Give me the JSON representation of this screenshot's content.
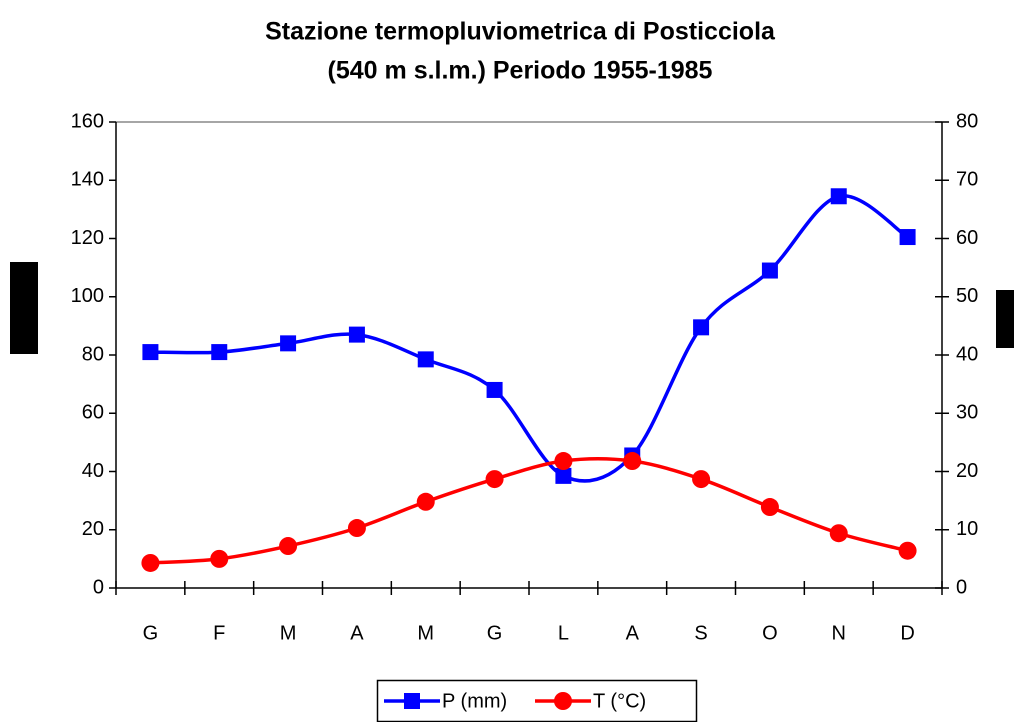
{
  "chart_data": {
    "type": "line",
    "title": "Stazione termopluviometrica di Posticciola",
    "subtitle": "(540 m s.l.m.) Periodo 1955-1985",
    "categories": [
      "G",
      "F",
      "M",
      "A",
      "M",
      "G",
      "L",
      "A",
      "S",
      "O",
      "N",
      "D"
    ],
    "series": [
      {
        "name": "P (mm)",
        "color": "#0000ff",
        "marker": "square",
        "values": [
          81,
          81,
          84,
          87,
          78.5,
          68,
          38.5,
          45.5,
          89.5,
          109,
          134.5,
          120.5
        ]
      },
      {
        "name": "T (°C)",
        "color": "#ff0000",
        "marker": "circle",
        "axis": "y2",
        "values": [
          4.3,
          5,
          7.2,
          10.3,
          14.8,
          18.7,
          21.8,
          21.8,
          18.7,
          13.9,
          9.4,
          6.4
        ]
      }
    ],
    "ylim": [
      0,
      160
    ],
    "yticks": [
      0,
      20,
      40,
      60,
      80,
      100,
      120,
      140,
      160
    ],
    "y2lim": [
      0,
      80
    ],
    "y2ticks": [
      0,
      10,
      20,
      30,
      40,
      50,
      60,
      70,
      80
    ],
    "smooth": true,
    "legend": "bottom"
  }
}
